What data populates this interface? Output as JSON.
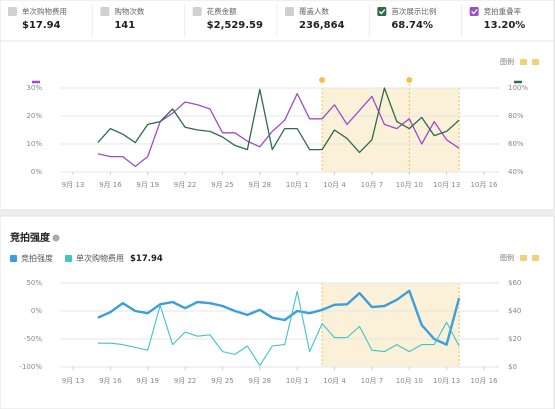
{
  "metrics": [
    {
      "label": "单次购物费用",
      "value": "$17.94",
      "checked": false,
      "color": "#d0d0d0"
    },
    {
      "label": "购物次数",
      "value": "141",
      "checked": false,
      "color": "#d0d0d0"
    },
    {
      "label": "花费金额",
      "value": "$2,529.59",
      "checked": false,
      "color": "#d0d0d0"
    },
    {
      "label": "覆盖人数",
      "value": "236,864",
      "checked": false,
      "color": "#d0d0d0"
    },
    {
      "label": "首次展示比例",
      "value": "68.74%",
      "checked": true,
      "color": "#2f6b4a"
    },
    {
      "label": "竞拍重叠率",
      "value": "13.20%",
      "checked": true,
      "color": "#9b4dca"
    }
  ],
  "chart_data": [
    {
      "type": "line",
      "legend_button": "图例",
      "categories": [
        "9月 13",
        null,
        null,
        "9月 16",
        null,
        null,
        "9月 19",
        null,
        null,
        "9月 22",
        null,
        null,
        "9月 25",
        null,
        null,
        "9月 28",
        null,
        null,
        "10月 1",
        null,
        null,
        "10月 4",
        null,
        null,
        "10月 7",
        null,
        null,
        "10月 10",
        null,
        null,
        "10月 13",
        null,
        null,
        "10月 16"
      ],
      "ylim": [
        0,
        30
      ],
      "yticks": [
        {
          "value": 0,
          "label": "0%"
        },
        {
          "value": 10,
          "label": "10%"
        },
        {
          "value": 20,
          "label": "20%"
        },
        {
          "value": 30,
          "label": "30%"
        }
      ],
      "y2lim": [
        40,
        100
      ],
      "y2ticks": [
        {
          "value": 40,
          "label": "40%"
        },
        {
          "value": 60,
          "label": "60%"
        },
        {
          "value": 80,
          "label": "80%"
        },
        {
          "value": 100,
          "label": "100%"
        }
      ],
      "grid": true,
      "highlight": {
        "from": 20,
        "to": 31,
        "color": "#fbf0d8"
      },
      "marker_lines": [
        27
      ],
      "series": [
        {
          "color": "#9b4dca",
          "axis": "y",
          "width": 1.3,
          "values": [
            null,
            null,
            6.5,
            5.5,
            5.5,
            2,
            5.5,
            18,
            21,
            25,
            24,
            22.5,
            14,
            14,
            11,
            9,
            14.5,
            18.5,
            28,
            19,
            19,
            24,
            17,
            22,
            27,
            17,
            15.5,
            19,
            10,
            18,
            11.5,
            8.5,
            null,
            null
          ]
        },
        {
          "color": "#2f6b4a",
          "axis": "y2",
          "width": 1.3,
          "values": [
            null,
            null,
            61,
            71,
            67,
            61,
            74,
            76,
            85,
            72,
            70,
            69,
            65,
            59,
            56,
            99,
            56,
            71,
            71,
            56,
            56,
            70,
            64,
            54,
            63,
            100,
            76,
            71,
            79,
            66,
            69,
            77,
            null,
            null
          ]
        }
      ]
    },
    {
      "type": "line",
      "title": "竞拍强度",
      "legend_button": "图例",
      "categories": [
        "9月 13",
        null,
        null,
        "9月 16",
        null,
        null,
        "9月 19",
        null,
        null,
        "9月 22",
        null,
        null,
        "9月 25",
        null,
        null,
        "9月 28",
        null,
        null,
        "10月 1",
        null,
        null,
        "10月 4",
        null,
        null,
        "10月 7",
        null,
        null,
        "10月 10",
        null,
        null,
        "10月 13",
        null,
        null,
        "10月 16"
      ],
      "ylim": [
        -100,
        50
      ],
      "yticks": [
        {
          "value": -100,
          "label": "-100%"
        },
        {
          "value": -50,
          "label": "-50%"
        },
        {
          "value": 0,
          "label": "0%"
        },
        {
          "value": 50,
          "label": "50%"
        }
      ],
      "y2lim": [
        0,
        60
      ],
      "y2ticks": [
        {
          "value": 0,
          "label": "$0"
        },
        {
          "value": 20,
          "label": "$20"
        },
        {
          "value": 40,
          "label": "$40"
        },
        {
          "value": 60,
          "label": "$60"
        }
      ],
      "grid": true,
      "highlight": {
        "from": 20,
        "to": 31,
        "color": "#fbf0d8"
      },
      "marker_lines": [],
      "series": [
        {
          "name": "竞拍强度",
          "color": "#3a9fdc",
          "axis": "y",
          "width": 2.4,
          "values": [
            null,
            null,
            -12,
            -2,
            14,
            0,
            -4,
            12,
            16,
            5,
            16,
            14,
            9,
            0,
            -7,
            2,
            -12,
            -16,
            0,
            -4,
            2,
            11,
            12,
            32,
            7,
            9,
            20,
            36,
            -25,
            -50,
            -60,
            23,
            null,
            null
          ]
        },
        {
          "name": "单次购物费用",
          "summary": "$17.94",
          "color": "#40c4c8",
          "axis": "y2",
          "width": 1.1,
          "values": [
            null,
            null,
            17,
            17,
            16,
            14,
            12,
            44,
            16,
            25,
            22,
            23,
            11,
            9,
            15,
            1,
            15,
            16,
            54,
            11,
            31,
            21,
            21,
            29,
            12,
            11,
            16,
            11,
            16,
            16,
            32,
            15,
            null,
            null
          ]
        }
      ]
    }
  ]
}
